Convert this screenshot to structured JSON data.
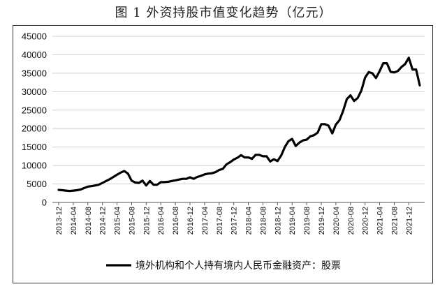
{
  "title": "图 1  外资持股市值变化趋势（亿元）",
  "chart_data": {
    "type": "line",
    "title": "图 1  外资持股市值变化趋势（亿元）",
    "xlabel": "",
    "ylabel": "",
    "ylim": [
      0,
      45000
    ],
    "yticks": [
      0,
      5000,
      10000,
      15000,
      20000,
      25000,
      30000,
      35000,
      40000,
      45000
    ],
    "xtick_labels": [
      "2013-12",
      "2014-04",
      "2014-08",
      "2014-12",
      "2015-04",
      "2015-08",
      "2015-12",
      "2016-04",
      "2016-08",
      "2016-12",
      "2017-04",
      "2017-08",
      "2017-12",
      "2018-04",
      "2018-08",
      "2018-12",
      "2019-04",
      "2019-08",
      "2019-12",
      "2020-04",
      "2020-08",
      "2020-12",
      "2021-04",
      "2021-08",
      "2021-12"
    ],
    "grid": "horizontal",
    "legend": "bottom",
    "series": [
      {
        "name": "境外机构和个人持有境内人民币金融资产：股票",
        "color": "#000000",
        "x": [
          "2013-12",
          "2014-01",
          "2014-02",
          "2014-03",
          "2014-04",
          "2014-05",
          "2014-06",
          "2014-07",
          "2014-08",
          "2014-09",
          "2014-10",
          "2014-11",
          "2014-12",
          "2015-01",
          "2015-02",
          "2015-03",
          "2015-04",
          "2015-05",
          "2015-06",
          "2015-07",
          "2015-08",
          "2015-09",
          "2015-10",
          "2015-11",
          "2015-12",
          "2016-01",
          "2016-02",
          "2016-03",
          "2016-04",
          "2016-05",
          "2016-06",
          "2016-07",
          "2016-08",
          "2016-09",
          "2016-10",
          "2016-11",
          "2016-12",
          "2017-01",
          "2017-02",
          "2017-03",
          "2017-04",
          "2017-05",
          "2017-06",
          "2017-07",
          "2017-08",
          "2017-09",
          "2017-10",
          "2017-11",
          "2017-12",
          "2018-01",
          "2018-02",
          "2018-03",
          "2018-04",
          "2018-05",
          "2018-06",
          "2018-07",
          "2018-08",
          "2018-09",
          "2018-10",
          "2018-11",
          "2018-12",
          "2019-01",
          "2019-02",
          "2019-03",
          "2019-04",
          "2019-05",
          "2019-06",
          "2019-07",
          "2019-08",
          "2019-09",
          "2019-10",
          "2019-11",
          "2019-12",
          "2020-01",
          "2020-02",
          "2020-03",
          "2020-04",
          "2020-05",
          "2020-06",
          "2020-07",
          "2020-08",
          "2020-09",
          "2020-10",
          "2020-11",
          "2020-12",
          "2021-01",
          "2021-02",
          "2021-03",
          "2021-04",
          "2021-05",
          "2021-06",
          "2021-07",
          "2021-08",
          "2021-09",
          "2021-10",
          "2021-11",
          "2021-12",
          "2022-01",
          "2022-02",
          "2022-03"
        ],
        "values": [
          3400,
          3300,
          3200,
          3100,
          3200,
          3300,
          3500,
          3900,
          4300,
          4400,
          4600,
          4800,
          5300,
          5800,
          6300,
          6900,
          7500,
          8100,
          8500,
          7800,
          5900,
          5400,
          5300,
          5900,
          4600,
          5800,
          4800,
          4800,
          5500,
          5500,
          5600,
          5800,
          6000,
          6200,
          6400,
          6400,
          6800,
          6400,
          6900,
          7200,
          7600,
          7800,
          7900,
          8200,
          8800,
          9100,
          10300,
          10900,
          11600,
          12100,
          12800,
          12200,
          12200,
          11800,
          12900,
          12900,
          12500,
          12500,
          11100,
          11700,
          11200,
          12700,
          15000,
          16600,
          17200,
          15300,
          16200,
          16800,
          17000,
          17900,
          18200,
          18900,
          21200,
          21200,
          20800,
          18700,
          21100,
          22300,
          24800,
          28000,
          29000,
          27500,
          28300,
          30300,
          33800,
          35300,
          35000,
          33700,
          35600,
          37700,
          37700,
          35400,
          35200,
          35600,
          36700,
          37500,
          39200,
          36000,
          36000,
          31700
        ]
      }
    ]
  }
}
